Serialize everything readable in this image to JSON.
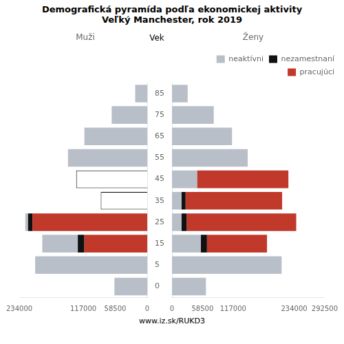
{
  "chart_data": [
    {
      "type": "bar",
      "orientation": "horizontal",
      "stacked": true,
      "grid": false,
      "title": "Demografická pyramída podľa ekonomickej aktivity",
      "subtitle": "Veľký Manchester, rok 2019",
      "xlabel": "Muži",
      "ylabel": "Vek",
      "annotations": [
        "www.iz.sk/RUKD3"
      ],
      "categories": [
        "0",
        "5",
        "15",
        "25",
        "35",
        "45",
        "55",
        "65",
        "75",
        "85"
      ],
      "xlim": [
        234000,
        0
      ],
      "xticks": [
        234000,
        117000,
        58500,
        0
      ],
      "series": [
        {
          "name": "pracujúci",
          "color": "#c0392b",
          "values": [
            0,
            0,
            115000,
            210000,
            0,
            0,
            0,
            0,
            0,
            0
          ]
        },
        {
          "name": "nezamestnaní",
          "color": "#111111",
          "values": [
            0,
            0,
            12000,
            8000,
            0,
            0,
            0,
            0,
            0,
            0
          ]
        },
        {
          "name": "neaktívni",
          "color": "#b8bfc8",
          "colors": [
            "#b8bfc8",
            "#b8bfc8",
            "#b8bfc8",
            "#b8bfc8",
            "#ffffff",
            "#ffffff",
            "#b8bfc8",
            "#b8bfc8",
            "#b8bfc8",
            "#b8bfc8"
          ],
          "values": [
            60000,
            205000,
            65000,
            5000,
            85000,
            130000,
            145000,
            115000,
            65000,
            22000
          ]
        }
      ]
    },
    {
      "type": "bar",
      "orientation": "horizontal",
      "stacked": true,
      "grid": false,
      "xlabel": "Ženy",
      "tick_labels": "x",
      "legend": "upper right",
      "categories": [
        "0",
        "5",
        "15",
        "25",
        "35",
        "45",
        "55",
        "65",
        "75",
        "85"
      ],
      "xlim": [
        0,
        292500
      ],
      "xticks": [
        0,
        58500,
        117000,
        234000,
        292500
      ],
      "series": [
        {
          "name": "neaktívni",
          "color": "#b8bfc8",
          "values": [
            65000,
            210000,
            55000,
            18000,
            18000,
            48000,
            145000,
            115000,
            80000,
            30000
          ]
        },
        {
          "name": "nezamestnaní",
          "color": "#111111",
          "values": [
            0,
            0,
            12000,
            10000,
            8000,
            0,
            0,
            0,
            0,
            0
          ]
        },
        {
          "name": "pracujúci",
          "color": "#c0392b",
          "values": [
            0,
            0,
            115000,
            210000,
            185000,
            175000,
            0,
            0,
            0,
            0
          ]
        }
      ]
    }
  ]
}
